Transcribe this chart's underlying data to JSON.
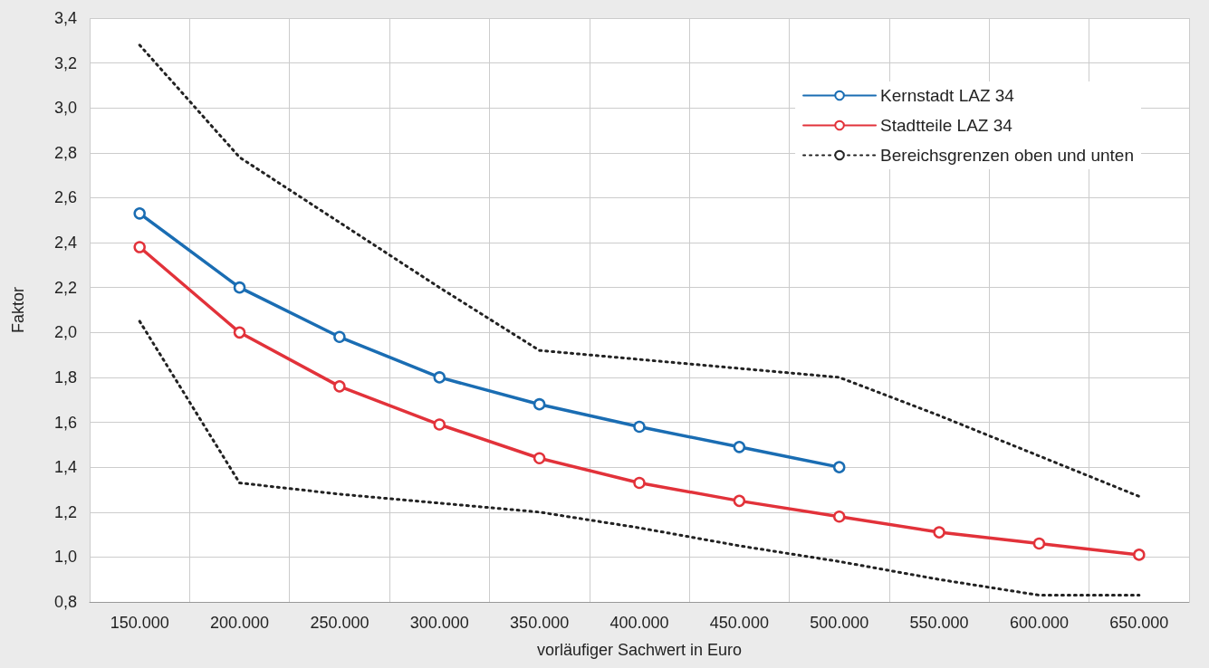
{
  "chart_data": {
    "type": "line",
    "xlabel": "vorläufiger Sachwert in Euro",
    "ylabel": "Faktor",
    "categories": [
      "150.000",
      "200.000",
      "250.000",
      "300.000",
      "350.000",
      "400.000",
      "450.000",
      "500.000",
      "550.000",
      "600.000",
      "650.000"
    ],
    "series": [
      {
        "name": "Kernstadt LAZ 34",
        "color": "#1a6db3",
        "marker": "circle",
        "line_style": "solid",
        "values": [
          2.53,
          2.2,
          1.98,
          1.8,
          1.68,
          1.58,
          1.49,
          1.4,
          null,
          null,
          null
        ]
      },
      {
        "name": "Stadtteile LAZ 34",
        "color": "#e2323a",
        "marker": "circle",
        "line_style": "solid",
        "values": [
          2.38,
          2.0,
          1.76,
          1.59,
          1.44,
          1.33,
          1.25,
          1.18,
          1.11,
          1.06,
          1.01
        ]
      },
      {
        "name": "Bereichsgrenzen oben und unten",
        "color": "#222222",
        "marker": "none",
        "line_style": "dotted",
        "values": [
          3.28,
          2.78,
          2.49,
          2.2,
          1.92,
          1.88,
          1.84,
          1.8,
          1.63,
          1.45,
          1.27
        ]
      },
      {
        "color": "#222222",
        "marker": "none",
        "line_style": "dotted",
        "values": [
          2.05,
          1.33,
          1.28,
          1.24,
          1.2,
          1.13,
          1.05,
          0.98,
          0.9,
          0.83,
          0.83
        ]
      }
    ],
    "ylim": [
      0.8,
      3.4
    ],
    "yticks": [
      {
        "value": 0.8,
        "label": "0,8"
      },
      {
        "value": 1.0,
        "label": "1,0"
      },
      {
        "value": 1.2,
        "label": "1,2"
      },
      {
        "value": 1.4,
        "label": "1,4"
      },
      {
        "value": 1.6,
        "label": "1,6"
      },
      {
        "value": 1.8,
        "label": "1,8"
      },
      {
        "value": 2.0,
        "label": "2,0"
      },
      {
        "value": 2.2,
        "label": "2,2"
      },
      {
        "value": 2.4,
        "label": "2,4"
      },
      {
        "value": 2.6,
        "label": "2,6"
      },
      {
        "value": 2.8,
        "label": "2,8"
      },
      {
        "value": 3.0,
        "label": "3,0"
      },
      {
        "value": 3.2,
        "label": "3,2"
      },
      {
        "value": 3.4,
        "label": "3,4"
      }
    ],
    "grid": true,
    "legend": "top right"
  }
}
